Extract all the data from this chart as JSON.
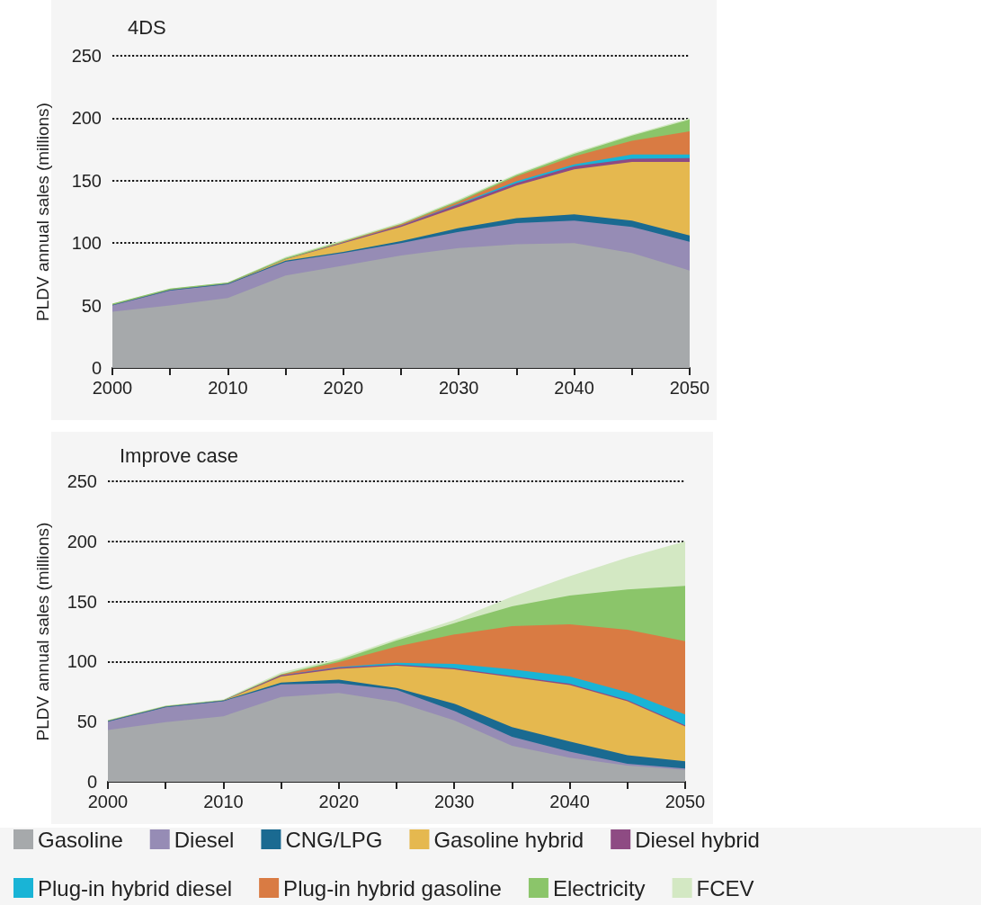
{
  "chart_data": [
    {
      "type": "area",
      "stacked": true,
      "title": "4DS",
      "ylabel": "PLDV annual sales (millions)",
      "grid": "y",
      "line_style": "dotted",
      "x": [
        2000,
        2005,
        2010,
        2015,
        2020,
        2025,
        2030,
        2035,
        2040,
        2045,
        2050
      ],
      "xlim": [
        2000,
        2050
      ],
      "xticks": [
        2000,
        {
          "value": 2005,
          "label": null
        },
        2010,
        {
          "value": 2015,
          "label": null
        },
        2020,
        {
          "value": 2025,
          "label": null
        },
        2030,
        {
          "value": 2035,
          "label": null
        },
        2040,
        {
          "value": 2045,
          "label": null
        },
        2050
      ],
      "ylim": [
        0,
        250
      ],
      "yticks": [
        0,
        50,
        100,
        150,
        200,
        250
      ],
      "series": [
        {
          "color": "#a6a9ab",
          "values": [
            45,
            50,
            56,
            74,
            82,
            90,
            96,
            99,
            100,
            92,
            78
          ]
        },
        {
          "color": "#968cb5",
          "values": [
            5,
            12,
            11,
            11,
            10,
            10,
            13,
            17,
            18,
            21,
            23
          ]
        },
        {
          "color": "#1a6a91",
          "values": [
            0.5,
            0.5,
            0.5,
            1,
            1,
            1.5,
            3,
            4,
            5,
            5,
            5
          ]
        },
        {
          "color": "#e5b84f",
          "values": [
            0,
            0,
            0,
            1,
            7,
            11.5,
            17,
            26,
            36,
            47,
            59
          ]
        },
        {
          "color": "#8e4b83",
          "values": [
            0,
            0,
            0,
            0,
            0.5,
            1,
            2,
            2,
            2.5,
            2.5,
            3
          ]
        },
        {
          "color": "#19b4d6",
          "values": [
            0,
            0,
            0,
            0,
            0,
            0,
            0.5,
            1.5,
            1.5,
            3.5,
            3
          ]
        },
        {
          "color": "#d97b43",
          "values": [
            0,
            0,
            0,
            0,
            0.5,
            1,
            1.5,
            4,
            6.5,
            11,
            18.5
          ]
        },
        {
          "color": "#8bc56a",
          "values": [
            1,
            1,
            1,
            1,
            0.5,
            0.5,
            1,
            1,
            2,
            4,
            9.5
          ]
        },
        {
          "color": "#d3e8c3",
          "values": [
            0,
            0,
            0,
            1,
            1,
            1,
            1,
            1,
            1,
            1,
            1
          ]
        }
      ]
    },
    {
      "type": "area",
      "stacked": true,
      "title": "Improve case",
      "ylabel": "PLDV annual sales (millions)",
      "grid": "y",
      "line_style": "dotted",
      "legend": "bottom",
      "x": [
        2000,
        2005,
        2010,
        2015,
        2020,
        2025,
        2030,
        2035,
        2040,
        2045,
        2050
      ],
      "xlim": [
        2000,
        2050
      ],
      "xticks": [
        2000,
        {
          "value": 2005,
          "label": null
        },
        2010,
        {
          "value": 2015,
          "label": null
        },
        2020,
        {
          "value": 2025,
          "label": null
        },
        2030,
        {
          "value": 2035,
          "label": null
        },
        2040,
        {
          "value": 2045,
          "label": null
        },
        2050
      ],
      "ylim": [
        0,
        250
      ],
      "yticks": [
        0,
        50,
        100,
        150,
        200,
        250
      ],
      "series": [
        {
          "name": "Gasoline",
          "color": "#a6a9ab",
          "values": [
            43,
            49.5,
            54.5,
            70.5,
            74,
            66.5,
            51,
            30,
            20,
            13.5,
            10
          ]
        },
        {
          "name": "Diesel",
          "color": "#968cb5",
          "values": [
            7,
            12.5,
            12.5,
            10.5,
            8,
            10,
            8,
            7.5,
            5,
            1.5,
            1
          ]
        },
        {
          "name": "CNG/LPG",
          "color": "#1a6a91",
          "values": [
            0.5,
            0.5,
            0.5,
            1.5,
            3,
            1.5,
            6,
            8,
            8.5,
            7,
            6
          ]
        },
        {
          "name": "Gasoline hybrid",
          "color": "#e5b84f",
          "values": [
            0,
            0,
            0,
            5,
            9,
            18.5,
            28.5,
            41.5,
            47,
            45,
            29
          ]
        },
        {
          "name": "Diesel hybrid",
          "color": "#8e4b83",
          "values": [
            0,
            0,
            0,
            1,
            1,
            1,
            1,
            1,
            1,
            1,
            1
          ]
        },
        {
          "name": "Plug-in hybrid diesel",
          "color": "#19b4d6",
          "values": [
            0,
            0,
            0,
            0,
            0.5,
            1.5,
            3.5,
            5.5,
            6,
            6.5,
            9
          ]
        },
        {
          "name": "Plug-in hybrid gasoline",
          "color": "#d97b43",
          "values": [
            0,
            0,
            0,
            0.5,
            4,
            13.5,
            24.5,
            36,
            43.5,
            52,
            61
          ]
        },
        {
          "name": "Electricity",
          "color": "#8bc56a",
          "values": [
            0.5,
            0.5,
            0.5,
            0.5,
            1.5,
            5,
            9.5,
            16.5,
            24,
            33.5,
            46
          ]
        },
        {
          "name": "FCEV",
          "color": "#d3e8c3",
          "values": [
            0.5,
            0.5,
            0.5,
            1.5,
            1.5,
            1.5,
            2.5,
            8,
            16,
            26.5,
            37
          ]
        }
      ]
    }
  ]
}
